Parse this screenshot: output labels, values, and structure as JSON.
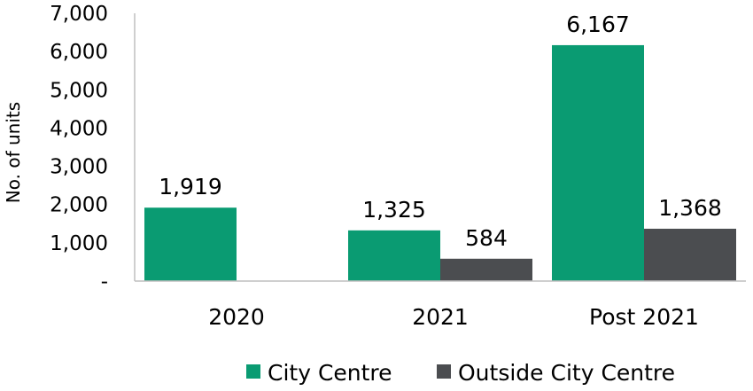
{
  "chart_data": {
    "type": "bar",
    "ylabel": "No. of units",
    "xlabel": "",
    "categories": [
      "2020",
      "2021",
      "Post 2021"
    ],
    "series": [
      {
        "name": "City Centre",
        "color": "#0a9b72",
        "values": [
          1919,
          1325,
          6167
        ],
        "labels": [
          "1,919",
          "1,325",
          "6,167"
        ]
      },
      {
        "name": "Outside City Centre",
        "color": "#4b4d50",
        "values": [
          null,
          584,
          1368
        ],
        "labels": [
          "",
          "584",
          "1,368"
        ]
      }
    ],
    "ylim": [
      0,
      7000
    ],
    "yticks": [
      {
        "value": 0,
        "label": "-"
      },
      {
        "value": 1000,
        "label": "1,000"
      },
      {
        "value": 2000,
        "label": "2,000"
      },
      {
        "value": 3000,
        "label": "3,000"
      },
      {
        "value": 4000,
        "label": "4,000"
      },
      {
        "value": 5000,
        "label": "5,000"
      },
      {
        "value": 6000,
        "label": "6,000"
      },
      {
        "value": 7000,
        "label": "7,000"
      }
    ],
    "grid": false,
    "legend_position": "bottom"
  }
}
